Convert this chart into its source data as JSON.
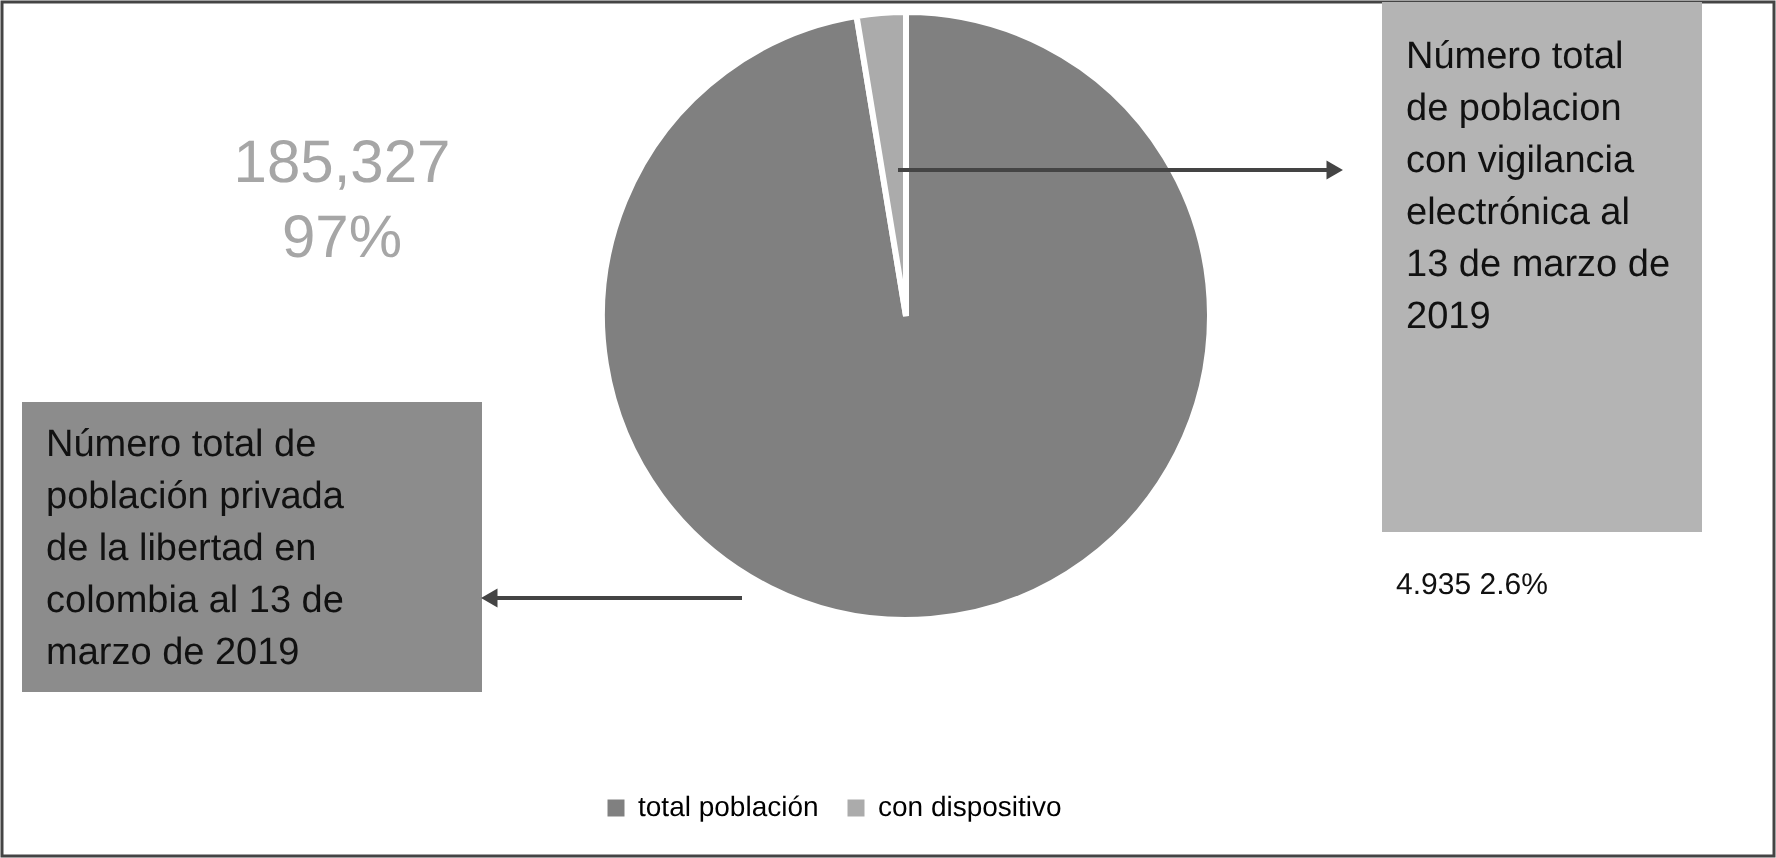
{
  "chart_data": {
    "type": "pie",
    "categories": [
      "total población",
      "con dispositivo"
    ],
    "values": [
      97.4,
      2.6
    ],
    "colors": [
      "#808080",
      "#ababab"
    ],
    "annotations": [
      "Número total de población privada de la libertad en colombia al 13 de marzo de 2019",
      "Número total de poblacion con vigilancia electrónica al 13 de marzo de 2019",
      "185,327\n97%",
      "4.935 2.6%"
    ],
    "legend": "bottom"
  }
}
